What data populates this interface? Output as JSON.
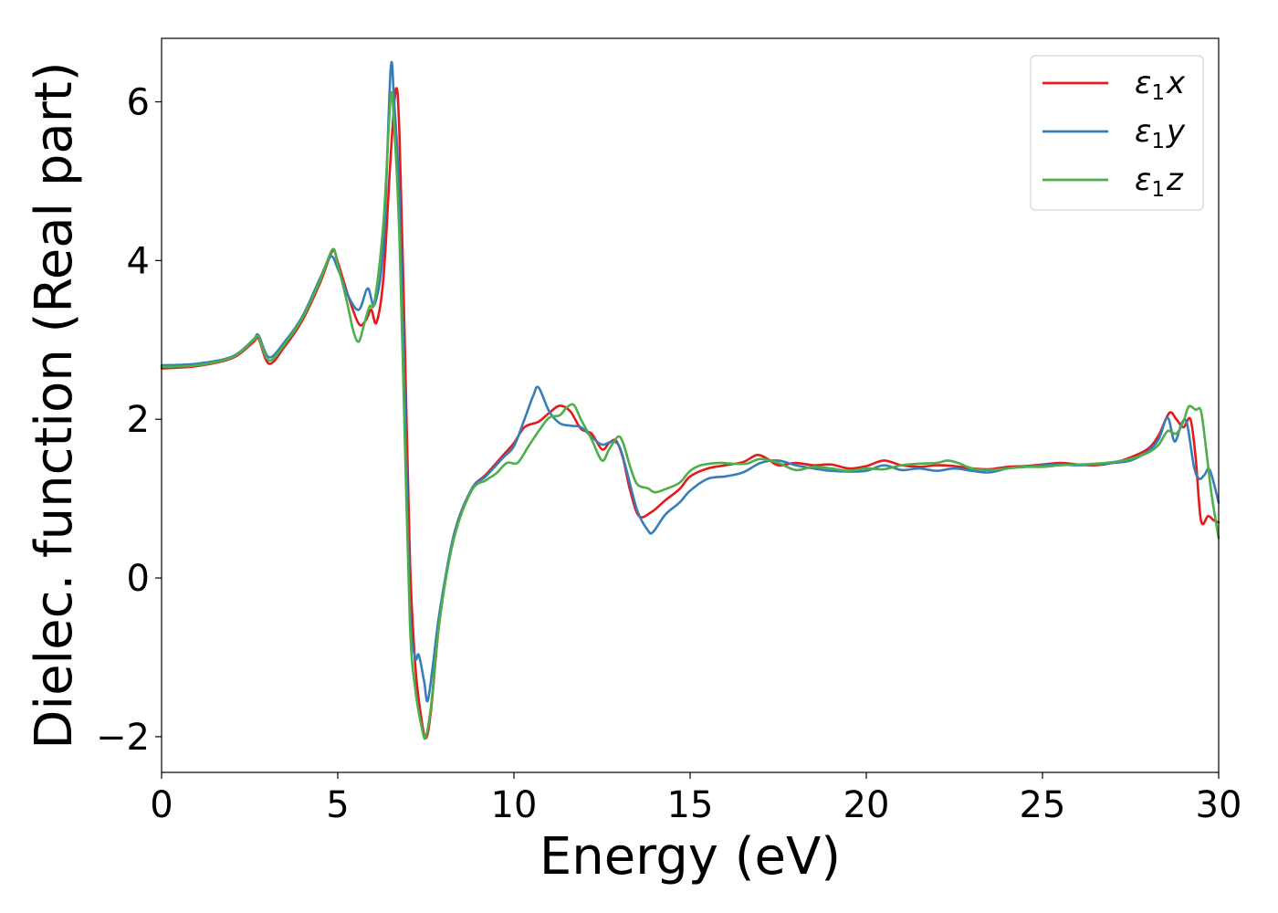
{
  "chart_data": {
    "type": "line",
    "title": "",
    "xlabel": "Energy (eV)",
    "ylabel": "Dielec. function (Real part)",
    "xlim": [
      0,
      30
    ],
    "ylim": [
      -2.45,
      6.8
    ],
    "xticks": [
      0,
      5,
      10,
      15,
      20,
      25,
      30
    ],
    "xtick_labels": [
      "0",
      "5",
      "10",
      "15",
      "20",
      "25",
      "30"
    ],
    "yticks": [
      -2,
      0,
      2,
      4,
      6
    ],
    "ytick_labels": [
      "−2",
      "0",
      "2",
      "4",
      "6"
    ],
    "grid": false,
    "legend_position": "top-right",
    "series": [
      {
        "name": "ε₁x",
        "legend_label": "ε₁x",
        "legend_main": "ε",
        "legend_sub": "1",
        "legend_suffix": "x",
        "color": "#e41a1c",
        "points": [
          [
            0,
            2.64
          ],
          [
            1,
            2.67
          ],
          [
            2,
            2.77
          ],
          [
            2.6,
            2.97
          ],
          [
            2.75,
            3.02
          ],
          [
            3.05,
            2.7
          ],
          [
            3.5,
            2.92
          ],
          [
            4.0,
            3.25
          ],
          [
            4.5,
            3.72
          ],
          [
            4.85,
            4.12
          ],
          [
            5.0,
            3.98
          ],
          [
            5.3,
            3.55
          ],
          [
            5.6,
            3.2
          ],
          [
            5.8,
            3.25
          ],
          [
            5.95,
            3.38
          ],
          [
            6.1,
            3.22
          ],
          [
            6.3,
            3.8
          ],
          [
            6.5,
            5.3
          ],
          [
            6.65,
            6.16
          ],
          [
            6.75,
            5.6
          ],
          [
            6.9,
            3.0
          ],
          [
            7.05,
            0.2
          ],
          [
            7.2,
            -1.1
          ],
          [
            7.35,
            -1.7
          ],
          [
            7.5,
            -2.02
          ],
          [
            7.65,
            -1.65
          ],
          [
            7.9,
            -0.5
          ],
          [
            8.3,
            0.55
          ],
          [
            8.8,
            1.12
          ],
          [
            9.2,
            1.3
          ],
          [
            9.7,
            1.55
          ],
          [
            10.0,
            1.7
          ],
          [
            10.3,
            1.9
          ],
          [
            10.7,
            1.97
          ],
          [
            11.0,
            2.08
          ],
          [
            11.3,
            2.17
          ],
          [
            11.6,
            2.1
          ],
          [
            11.9,
            1.88
          ],
          [
            12.2,
            1.82
          ],
          [
            12.5,
            1.62
          ],
          [
            12.7,
            1.7
          ],
          [
            12.9,
            1.73
          ],
          [
            13.1,
            1.5
          ],
          [
            13.3,
            1.1
          ],
          [
            13.55,
            0.78
          ],
          [
            13.9,
            0.83
          ],
          [
            14.3,
            0.98
          ],
          [
            14.7,
            1.12
          ],
          [
            15.0,
            1.28
          ],
          [
            15.5,
            1.38
          ],
          [
            16.0,
            1.42
          ],
          [
            16.5,
            1.46
          ],
          [
            16.9,
            1.55
          ],
          [
            17.2,
            1.5
          ],
          [
            17.5,
            1.42
          ],
          [
            18.0,
            1.45
          ],
          [
            18.5,
            1.42
          ],
          [
            19.0,
            1.43
          ],
          [
            19.5,
            1.38
          ],
          [
            20.0,
            1.41
          ],
          [
            20.5,
            1.48
          ],
          [
            21.0,
            1.42
          ],
          [
            21.5,
            1.4
          ],
          [
            22.0,
            1.42
          ],
          [
            22.5,
            1.41
          ],
          [
            23.0,
            1.38
          ],
          [
            23.5,
            1.37
          ],
          [
            24.0,
            1.4
          ],
          [
            24.5,
            1.41
          ],
          [
            25.0,
            1.43
          ],
          [
            25.5,
            1.45
          ],
          [
            26.0,
            1.43
          ],
          [
            26.5,
            1.42
          ],
          [
            27.0,
            1.45
          ],
          [
            27.5,
            1.52
          ],
          [
            28.0,
            1.63
          ],
          [
            28.3,
            1.8
          ],
          [
            28.6,
            2.08
          ],
          [
            28.8,
            2.0
          ],
          [
            29.0,
            1.9
          ],
          [
            29.2,
            2.0
          ],
          [
            29.35,
            1.5
          ],
          [
            29.5,
            0.72
          ],
          [
            29.7,
            0.78
          ],
          [
            29.85,
            0.73
          ],
          [
            30,
            0.7
          ]
        ]
      },
      {
        "name": "ε₁y",
        "legend_label": "ε₁y",
        "legend_main": "ε",
        "legend_sub": "1",
        "legend_suffix": "y",
        "color": "#377eb8",
        "points": [
          [
            0,
            2.68
          ],
          [
            1,
            2.7
          ],
          [
            2,
            2.79
          ],
          [
            2.6,
            3.0
          ],
          [
            2.75,
            3.06
          ],
          [
            3.05,
            2.78
          ],
          [
            3.5,
            2.98
          ],
          [
            4.0,
            3.3
          ],
          [
            4.5,
            3.78
          ],
          [
            4.8,
            4.05
          ],
          [
            5.0,
            3.9
          ],
          [
            5.3,
            3.55
          ],
          [
            5.6,
            3.38
          ],
          [
            5.85,
            3.65
          ],
          [
            6.05,
            3.45
          ],
          [
            6.3,
            4.2
          ],
          [
            6.5,
            6.4
          ],
          [
            6.6,
            6.0
          ],
          [
            6.75,
            4.8
          ],
          [
            6.9,
            2.3
          ],
          [
            7.05,
            -0.4
          ],
          [
            7.2,
            -1.0
          ],
          [
            7.3,
            -0.97
          ],
          [
            7.45,
            -1.3
          ],
          [
            7.55,
            -1.55
          ],
          [
            7.7,
            -1.1
          ],
          [
            7.9,
            -0.4
          ],
          [
            8.3,
            0.55
          ],
          [
            8.8,
            1.12
          ],
          [
            9.2,
            1.28
          ],
          [
            9.7,
            1.52
          ],
          [
            10.0,
            1.66
          ],
          [
            10.3,
            2.0
          ],
          [
            10.55,
            2.3
          ],
          [
            10.7,
            2.4
          ],
          [
            11.0,
            2.1
          ],
          [
            11.3,
            1.95
          ],
          [
            11.6,
            1.92
          ],
          [
            11.9,
            1.9
          ],
          [
            12.2,
            1.78
          ],
          [
            12.5,
            1.68
          ],
          [
            12.8,
            1.72
          ],
          [
            13.0,
            1.65
          ],
          [
            13.2,
            1.35
          ],
          [
            13.5,
            0.85
          ],
          [
            13.8,
            0.6
          ],
          [
            13.95,
            0.58
          ],
          [
            14.3,
            0.8
          ],
          [
            14.7,
            0.95
          ],
          [
            15.0,
            1.1
          ],
          [
            15.5,
            1.25
          ],
          [
            16.0,
            1.28
          ],
          [
            16.5,
            1.33
          ],
          [
            17.0,
            1.45
          ],
          [
            17.5,
            1.48
          ],
          [
            18.0,
            1.42
          ],
          [
            18.5,
            1.38
          ],
          [
            19.0,
            1.35
          ],
          [
            19.5,
            1.34
          ],
          [
            20.0,
            1.35
          ],
          [
            20.5,
            1.42
          ],
          [
            21.0,
            1.36
          ],
          [
            21.5,
            1.38
          ],
          [
            22.0,
            1.35
          ],
          [
            22.5,
            1.38
          ],
          [
            23.0,
            1.35
          ],
          [
            23.5,
            1.33
          ],
          [
            24.0,
            1.38
          ],
          [
            24.5,
            1.4
          ],
          [
            25.0,
            1.42
          ],
          [
            25.5,
            1.43
          ],
          [
            26.0,
            1.42
          ],
          [
            26.5,
            1.43
          ],
          [
            27.0,
            1.45
          ],
          [
            27.5,
            1.48
          ],
          [
            28.0,
            1.6
          ],
          [
            28.3,
            1.75
          ],
          [
            28.55,
            2.02
          ],
          [
            28.75,
            1.72
          ],
          [
            28.95,
            1.95
          ],
          [
            29.1,
            1.95
          ],
          [
            29.3,
            1.4
          ],
          [
            29.45,
            1.25
          ],
          [
            29.6,
            1.3
          ],
          [
            29.75,
            1.36
          ],
          [
            30,
            0.95
          ]
        ]
      },
      {
        "name": "ε₁z",
        "legend_label": "ε₁z",
        "legend_main": "ε",
        "legend_sub": "1",
        "legend_suffix": "z",
        "color": "#4daf4a",
        "points": [
          [
            0,
            2.66
          ],
          [
            1,
            2.68
          ],
          [
            2,
            2.78
          ],
          [
            2.6,
            2.99
          ],
          [
            2.75,
            3.04
          ],
          [
            3.05,
            2.74
          ],
          [
            3.5,
            2.95
          ],
          [
            4.0,
            3.28
          ],
          [
            4.5,
            3.75
          ],
          [
            4.85,
            4.14
          ],
          [
            5.0,
            3.95
          ],
          [
            5.25,
            3.5
          ],
          [
            5.45,
            3.1
          ],
          [
            5.6,
            2.98
          ],
          [
            5.75,
            3.2
          ],
          [
            5.9,
            3.42
          ],
          [
            6.05,
            3.5
          ],
          [
            6.3,
            4.5
          ],
          [
            6.5,
            6.05
          ],
          [
            6.6,
            5.7
          ],
          [
            6.75,
            4.3
          ],
          [
            6.9,
            1.8
          ],
          [
            7.05,
            -0.6
          ],
          [
            7.2,
            -1.4
          ],
          [
            7.4,
            -1.92
          ],
          [
            7.5,
            -2.0
          ],
          [
            7.65,
            -1.6
          ],
          [
            7.9,
            -0.5
          ],
          [
            8.3,
            0.5
          ],
          [
            8.8,
            1.1
          ],
          [
            9.2,
            1.23
          ],
          [
            9.5,
            1.32
          ],
          [
            9.8,
            1.45
          ],
          [
            10.1,
            1.45
          ],
          [
            10.4,
            1.65
          ],
          [
            10.7,
            1.85
          ],
          [
            11.0,
            2.02
          ],
          [
            11.3,
            2.05
          ],
          [
            11.5,
            2.15
          ],
          [
            11.7,
            2.18
          ],
          [
            11.9,
            2.0
          ],
          [
            12.2,
            1.75
          ],
          [
            12.5,
            1.48
          ],
          [
            12.7,
            1.62
          ],
          [
            12.95,
            1.78
          ],
          [
            13.1,
            1.7
          ],
          [
            13.3,
            1.4
          ],
          [
            13.5,
            1.18
          ],
          [
            13.8,
            1.13
          ],
          [
            14.0,
            1.08
          ],
          [
            14.3,
            1.12
          ],
          [
            14.7,
            1.2
          ],
          [
            15.0,
            1.35
          ],
          [
            15.3,
            1.42
          ],
          [
            15.8,
            1.45
          ],
          [
            16.2,
            1.44
          ],
          [
            16.6,
            1.44
          ],
          [
            17.0,
            1.5
          ],
          [
            17.5,
            1.45
          ],
          [
            18.0,
            1.36
          ],
          [
            18.5,
            1.4
          ],
          [
            19.0,
            1.38
          ],
          [
            19.5,
            1.35
          ],
          [
            20.0,
            1.38
          ],
          [
            20.5,
            1.37
          ],
          [
            21.0,
            1.42
          ],
          [
            21.5,
            1.44
          ],
          [
            22.0,
            1.45
          ],
          [
            22.3,
            1.48
          ],
          [
            22.6,
            1.45
          ],
          [
            23.0,
            1.38
          ],
          [
            23.5,
            1.36
          ],
          [
            24.0,
            1.38
          ],
          [
            24.5,
            1.4
          ],
          [
            25.0,
            1.4
          ],
          [
            25.5,
            1.42
          ],
          [
            26.0,
            1.43
          ],
          [
            26.5,
            1.44
          ],
          [
            27.0,
            1.46
          ],
          [
            27.5,
            1.5
          ],
          [
            28.0,
            1.58
          ],
          [
            28.3,
            1.68
          ],
          [
            28.55,
            1.85
          ],
          [
            28.8,
            1.82
          ],
          [
            29.0,
            1.97
          ],
          [
            29.15,
            2.16
          ],
          [
            29.35,
            2.12
          ],
          [
            29.5,
            2.1
          ],
          [
            29.65,
            1.6
          ],
          [
            29.8,
            1.05
          ],
          [
            30,
            0.5
          ]
        ]
      }
    ]
  }
}
